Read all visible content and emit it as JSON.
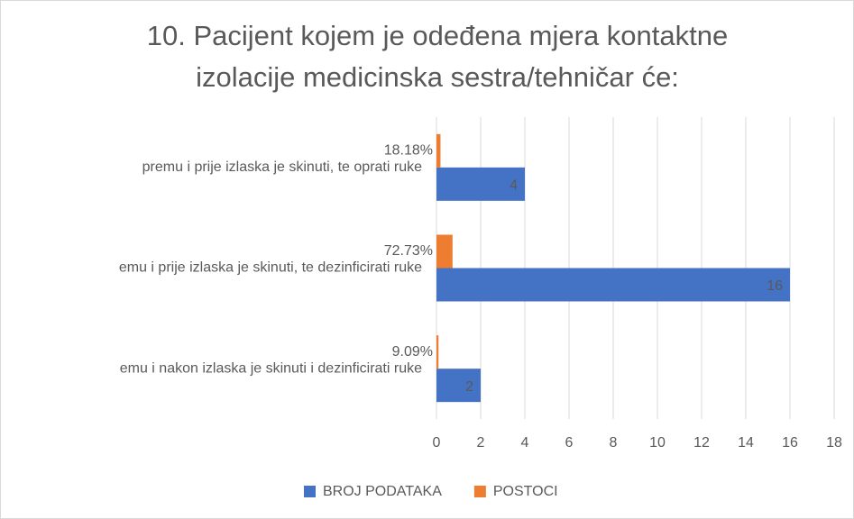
{
  "chart_data": {
    "type": "bar",
    "orientation": "horizontal",
    "title": [
      "10. Pacijent kojem je odeđena  mjera kontaktne",
      "izolacije medicinska sestra/tehničar će:"
    ],
    "categories": [
      "premu i prije izlaska je skinuti, te oprati ruke",
      "emu i prije izlaska je skinuti, te dezinficirati ruke",
      "emu i nakon izlaska je skinuti i dezinficirati ruke"
    ],
    "series": [
      {
        "name": "BROJ PODATAKA",
        "color": "#4472c4",
        "values": [
          4,
          16,
          2
        ]
      },
      {
        "name": "POSTOCI",
        "color": "#ed7d31",
        "values": [
          0.1818,
          0.7273,
          0.0909
        ],
        "value_labels": [
          "18.18%",
          "72.73%",
          "9.09%"
        ]
      }
    ],
    "xlim": [
      0,
      18
    ],
    "xticks": [
      0,
      2,
      4,
      6,
      8,
      10,
      12,
      14,
      16,
      18
    ],
    "grid": true,
    "legend": "bottom"
  }
}
